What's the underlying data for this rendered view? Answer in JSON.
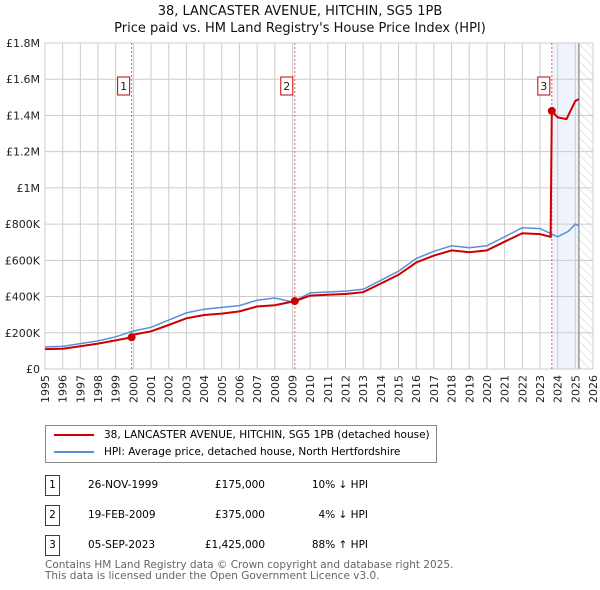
{
  "chart_data": {
    "type": "line",
    "title": "38, LANCASTER AVENUE, HITCHIN, SG5 1PB",
    "subtitle": "Price paid vs. HM Land Registry's House Price Index (HPI)",
    "xlim": [
      1995,
      2026
    ],
    "ylim": [
      0,
      1800000
    ],
    "x_ticks": [
      "1995",
      "1996",
      "1997",
      "1998",
      "1999",
      "2000",
      "2001",
      "2002",
      "2003",
      "2004",
      "2005",
      "2006",
      "2007",
      "2008",
      "2009",
      "2010",
      "2011",
      "2012",
      "2013",
      "2014",
      "2015",
      "2016",
      "2017",
      "2018",
      "2019",
      "2020",
      "2021",
      "2022",
      "2023",
      "2024",
      "2025",
      "2026"
    ],
    "y_ticks": [
      {
        "v": 0,
        "label": "£0"
      },
      {
        "v": 200000,
        "label": "£200K"
      },
      {
        "v": 400000,
        "label": "£400K"
      },
      {
        "v": 600000,
        "label": "£600K"
      },
      {
        "v": 800000,
        "label": "£800K"
      },
      {
        "v": 1000000,
        "label": "£1M"
      },
      {
        "v": 1200000,
        "label": "£1.2M"
      },
      {
        "v": 1400000,
        "label": "£1.4M"
      },
      {
        "v": 1600000,
        "label": "£1.6M"
      },
      {
        "v": 1800000,
        "label": "£1.8M"
      }
    ],
    "series": [
      {
        "name": "38, LANCASTER AVENUE, HITCHIN, SG5 1PB (detached house)",
        "color": "#cc0000",
        "x": [
          1995,
          1996,
          1997,
          1998,
          1999,
          1999.9,
          2000,
          2001,
          2002,
          2003,
          2004,
          2005,
          2006,
          2007,
          2008,
          2009.13,
          2010,
          2011,
          2012,
          2013,
          2014,
          2015,
          2016,
          2017,
          2018,
          2019,
          2020,
          2021,
          2022,
          2023,
          2023.6,
          2023.67,
          2024,
          2024.5,
          2025,
          2025.2
        ],
        "y": [
          110000,
          112000,
          126000,
          140000,
          158000,
          175000,
          190000,
          208000,
          243000,
          280000,
          298000,
          306000,
          318000,
          345000,
          352000,
          375000,
          405000,
          410000,
          414000,
          424000,
          472000,
          520000,
          588000,
          626000,
          655000,
          645000,
          655000,
          703000,
          750000,
          745000,
          730000,
          1425000,
          1390000,
          1380000,
          1480000,
          1490000
        ]
      },
      {
        "name": "HPI: Average price, detached house, North Hertfordshire",
        "color": "#5b8fd6",
        "x": [
          1995,
          1996,
          1997,
          1998,
          1999,
          2000,
          2001,
          2002,
          2003,
          2004,
          2005,
          2006,
          2007,
          2008,
          2009,
          2010,
          2011,
          2012,
          2013,
          2014,
          2015,
          2016,
          2017,
          2018,
          2019,
          2020,
          2021,
          2022,
          2023,
          2024,
          2024.6,
          2025,
          2025.2
        ],
        "y": [
          122000,
          125000,
          140000,
          155000,
          178000,
          210000,
          230000,
          270000,
          310000,
          330000,
          340000,
          350000,
          380000,
          392000,
          370000,
          420000,
          425000,
          430000,
          440000,
          490000,
          540000,
          610000,
          650000,
          680000,
          670000,
          680000,
          730000,
          780000,
          775000,
          730000,
          760000,
          800000,
          790000
        ]
      }
    ],
    "sales": [
      {
        "id": "1",
        "x": 1999.9,
        "y": 175000,
        "date": "26-NOV-1999",
        "price": "£175,000",
        "hpi": "10% ↓ HPI"
      },
      {
        "id": "2",
        "x": 2009.13,
        "y": 375000,
        "date": "19-FEB-2009",
        "price": "£375,000",
        "hpi": "4% ↓ HPI"
      },
      {
        "id": "3",
        "x": 2023.67,
        "y": 1425000,
        "date": "05-SEP-2023",
        "price": "£1,425,000",
        "hpi": "88% ↑ HPI"
      }
    ],
    "shaded_until": 2025.2
  },
  "footer": {
    "line1": "Contains HM Land Registry data © Crown copyright and database right 2025.",
    "line2": "This data is licensed under the Open Government Licence v3.0."
  }
}
